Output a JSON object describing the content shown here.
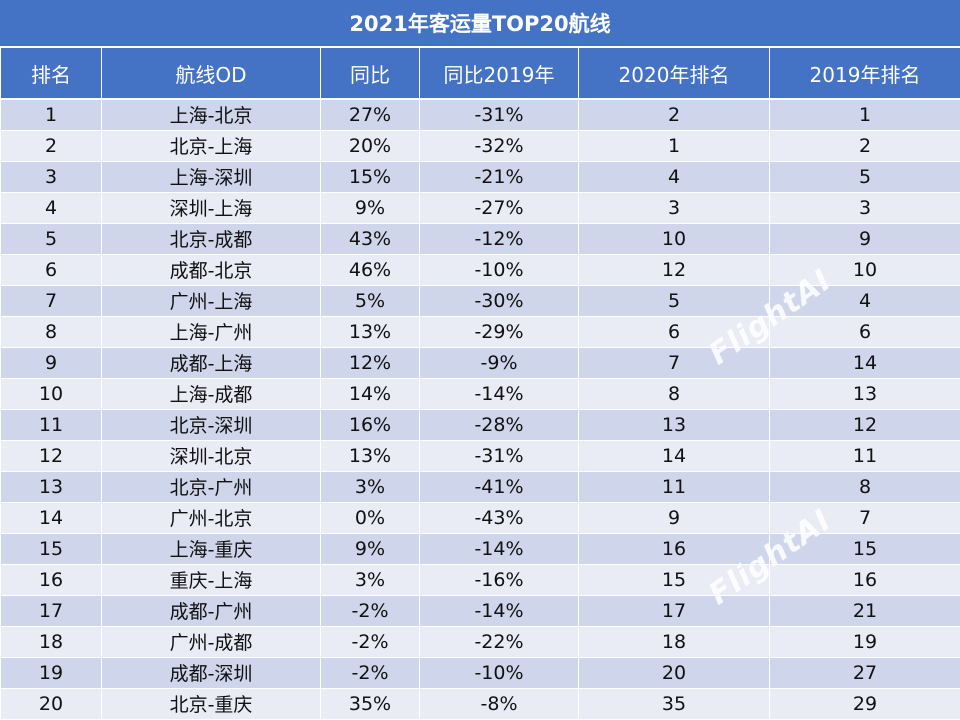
{
  "title": "2021年客运量TOP20航线",
  "columns": [
    "排名",
    "航线OD",
    "同比",
    "同比2019年",
    "2020年排名",
    "2019年排名"
  ],
  "rows": [
    [
      "1",
      "上海-北京",
      "27%",
      "-31%",
      "2",
      "1"
    ],
    [
      "2",
      "北京-上海",
      "20%",
      "-32%",
      "1",
      "2"
    ],
    [
      "3",
      "上海-深圳",
      "15%",
      "-21%",
      "4",
      "5"
    ],
    [
      "4",
      "深圳-上海",
      "9%",
      "-27%",
      "3",
      "3"
    ],
    [
      "5",
      "北京-成都",
      "43%",
      "-12%",
      "10",
      "9"
    ],
    [
      "6",
      "成都-北京",
      "46%",
      "-10%",
      "12",
      "10"
    ],
    [
      "7",
      "广州-上海",
      "5%",
      "-30%",
      "5",
      "4"
    ],
    [
      "8",
      "上海-广州",
      "13%",
      "-29%",
      "6",
      "6"
    ],
    [
      "9",
      "成都-上海",
      "12%",
      "-9%",
      "7",
      "14"
    ],
    [
      "10",
      "上海-成都",
      "14%",
      "-14%",
      "8",
      "13"
    ],
    [
      "11",
      "北京-深圳",
      "16%",
      "-28%",
      "13",
      "12"
    ],
    [
      "12",
      "深圳-北京",
      "13%",
      "-31%",
      "14",
      "11"
    ],
    [
      "13",
      "北京-广州",
      "3%",
      "-41%",
      "11",
      "8"
    ],
    [
      "14",
      "广州-北京",
      "0%",
      "-43%",
      "9",
      "7"
    ],
    [
      "15",
      "上海-重庆",
      "9%",
      "-14%",
      "16",
      "15"
    ],
    [
      "16",
      "重庆-上海",
      "3%",
      "-16%",
      "15",
      "16"
    ],
    [
      "17",
      "成都-广州",
      "-2%",
      "-14%",
      "17",
      "21"
    ],
    [
      "18",
      "广州-成都",
      "-2%",
      "-22%",
      "18",
      "19"
    ],
    [
      "19",
      "成都-深圳",
      "-2%",
      "-10%",
      "20",
      "27"
    ],
    [
      "20",
      "北京-重庆",
      "35%",
      "-8%",
      "35",
      "29"
    ]
  ],
  "watermark": "FlightAI",
  "colors": {
    "header": "#4472c4",
    "row_odd": "#cfd5ea",
    "row_even": "#e9ebf5"
  }
}
